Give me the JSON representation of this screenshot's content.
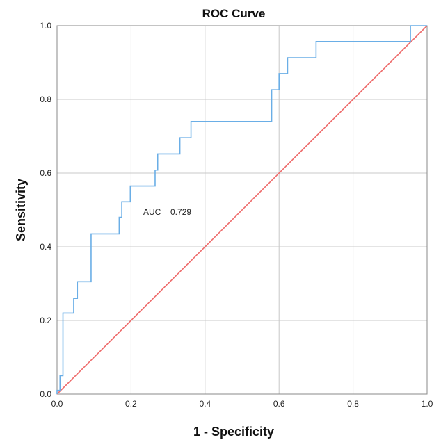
{
  "chart_data": {
    "type": "line",
    "title": "ROC Curve",
    "xlabel": "1 - Specificity",
    "ylabel": "Sensitivity",
    "xlim": [
      0.0,
      1.0
    ],
    "ylim": [
      0.0,
      1.0
    ],
    "x_ticks": [
      "0.0",
      "0.2",
      "0.4",
      "0.6",
      "0.8",
      "1.0"
    ],
    "y_ticks": [
      "0.0",
      "0.2",
      "0.4",
      "0.6",
      "0.8",
      "1.0"
    ],
    "grid": true,
    "annotation": "AUC = 0.729",
    "colors": {
      "roc": "#6aaee6",
      "reference": "#ee6b6b",
      "grid": "#c8c8c8",
      "frame": "#888888"
    },
    "series": [
      {
        "values_xy": [
          [
            0.0,
            0.0
          ],
          [
            0.0,
            0.01
          ],
          [
            0.008,
            0.01
          ],
          [
            0.008,
            0.05
          ],
          [
            0.016,
            0.05
          ],
          [
            0.016,
            0.22
          ],
          [
            0.045,
            0.22
          ],
          [
            0.045,
            0.26
          ],
          [
            0.055,
            0.26
          ],
          [
            0.055,
            0.305
          ],
          [
            0.092,
            0.305
          ],
          [
            0.092,
            0.435
          ],
          [
            0.168,
            0.435
          ],
          [
            0.168,
            0.48
          ],
          [
            0.175,
            0.48
          ],
          [
            0.175,
            0.522
          ],
          [
            0.198,
            0.522
          ],
          [
            0.198,
            0.565
          ],
          [
            0.265,
            0.565
          ],
          [
            0.265,
            0.608
          ],
          [
            0.272,
            0.608
          ],
          [
            0.272,
            0.652
          ],
          [
            0.332,
            0.652
          ],
          [
            0.332,
            0.696
          ],
          [
            0.362,
            0.696
          ],
          [
            0.362,
            0.74
          ],
          [
            0.58,
            0.74
          ],
          [
            0.58,
            0.826
          ],
          [
            0.6,
            0.826
          ],
          [
            0.6,
            0.87
          ],
          [
            0.623,
            0.87
          ],
          [
            0.623,
            0.913
          ],
          [
            0.7,
            0.913
          ],
          [
            0.7,
            0.957
          ],
          [
            0.955,
            0.957
          ],
          [
            0.955,
            1.0
          ],
          [
            1.0,
            1.0
          ]
        ]
      },
      {
        "values_xy": [
          [
            0.0,
            0.0
          ],
          [
            1.0,
            1.0
          ]
        ]
      }
    ]
  }
}
